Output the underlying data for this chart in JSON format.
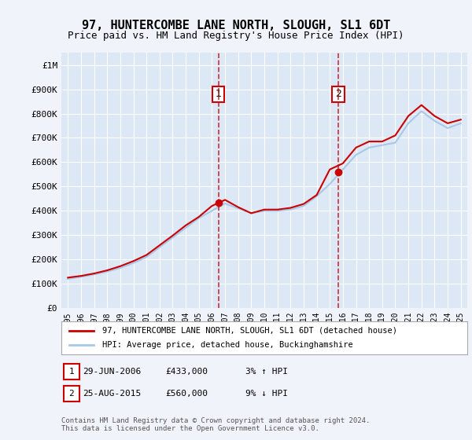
{
  "title": "97, HUNTERCOMBE LANE NORTH, SLOUGH, SL1 6DT",
  "subtitle": "Price paid vs. HM Land Registry's House Price Index (HPI)",
  "background_color": "#f0f4fa",
  "plot_bg_color": "#dce8f5",
  "legend_line1": "97, HUNTERCOMBE LANE NORTH, SLOUGH, SL1 6DT (detached house)",
  "legend_line2": "HPI: Average price, detached house, Buckinghamshire",
  "footer": "Contains HM Land Registry data © Crown copyright and database right 2024.\nThis data is licensed under the Open Government Licence v3.0.",
  "sale1_label": "1",
  "sale1_date": "29-JUN-2006",
  "sale1_price": "£433,000",
  "sale1_hpi": "3% ↑ HPI",
  "sale2_label": "2",
  "sale2_date": "25-AUG-2015",
  "sale2_price": "£560,000",
  "sale2_hpi": "9% ↓ HPI",
  "ylim": [
    0,
    1050000
  ],
  "yticks": [
    0,
    100000,
    200000,
    300000,
    400000,
    500000,
    600000,
    700000,
    800000,
    900000,
    1000000
  ],
  "ytick_labels": [
    "£0",
    "£100K",
    "£200K",
    "£300K",
    "£400K",
    "£500K",
    "£600K",
    "£700K",
    "£800K",
    "£900K",
    "£1M"
  ],
  "hpi_color": "#a8c8e8",
  "price_color": "#cc0000",
  "sale_marker_color": "#cc0000",
  "vline_color": "#cc0000",
  "grid_color": "#ffffff",
  "hpi_x": [
    1995,
    1996,
    1997,
    1998,
    1999,
    2000,
    2001,
    2002,
    2003,
    2004,
    2005,
    2006,
    2007,
    2008,
    2009,
    2010,
    2011,
    2012,
    2013,
    2014,
    2015,
    2016,
    2017,
    2018,
    2019,
    2020,
    2021,
    2022,
    2023,
    2024,
    2025
  ],
  "hpi_y": [
    120000,
    128000,
    138000,
    150000,
    165000,
    185000,
    210000,
    250000,
    290000,
    330000,
    370000,
    400000,
    430000,
    410000,
    390000,
    400000,
    400000,
    405000,
    420000,
    460000,
    510000,
    570000,
    630000,
    660000,
    670000,
    680000,
    760000,
    810000,
    770000,
    740000,
    760000
  ],
  "price_x": [
    1995,
    1996,
    1997,
    1998,
    1999,
    2000,
    2001,
    2002,
    2003,
    2004,
    2005,
    2006,
    2007,
    2008,
    2009,
    2010,
    2011,
    2012,
    2013,
    2014,
    2015,
    2016,
    2017,
    2018,
    2019,
    2020,
    2021,
    2022,
    2023,
    2024,
    2025
  ],
  "price_y": [
    125000,
    132000,
    142000,
    155000,
    172000,
    193000,
    218000,
    258000,
    298000,
    340000,
    375000,
    420000,
    445000,
    415000,
    390000,
    405000,
    405000,
    412000,
    428000,
    465000,
    570000,
    595000,
    660000,
    685000,
    685000,
    710000,
    790000,
    835000,
    790000,
    760000,
    775000
  ],
  "sale1_x": 2006.5,
  "sale1_y": 433000,
  "sale2_x": 2015.65,
  "sale2_y": 560000,
  "xlim_left": 1994.5,
  "xlim_right": 2025.5,
  "xticks": [
    1995,
    1996,
    1997,
    1998,
    1999,
    2000,
    2001,
    2002,
    2003,
    2004,
    2005,
    2006,
    2007,
    2008,
    2009,
    2010,
    2011,
    2012,
    2013,
    2014,
    2015,
    2016,
    2017,
    2018,
    2019,
    2020,
    2021,
    2022,
    2023,
    2024,
    2025
  ]
}
